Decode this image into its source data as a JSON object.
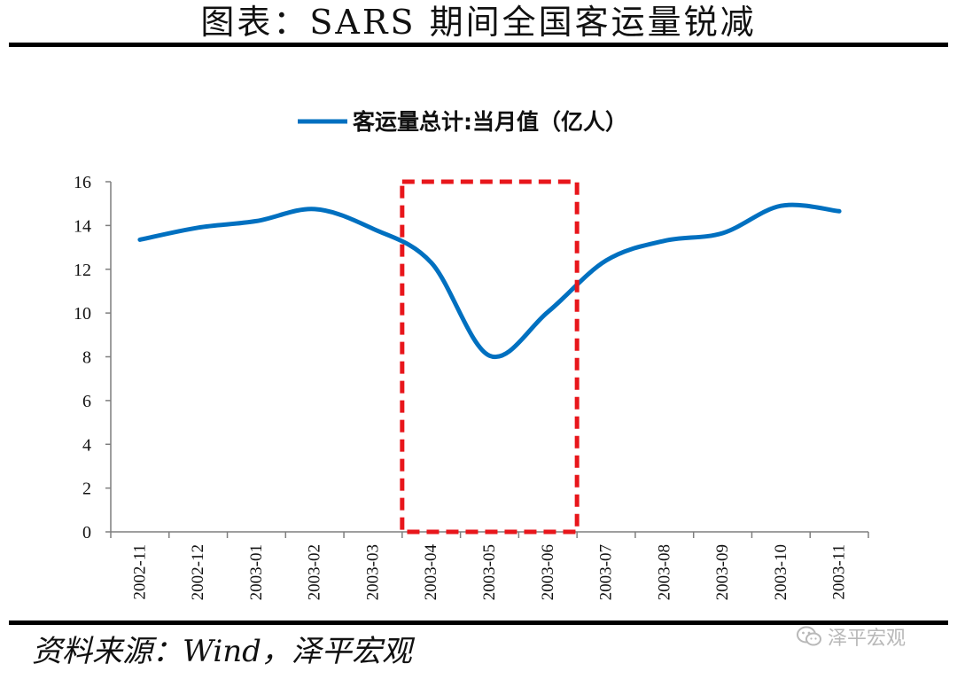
{
  "title": "图表：SARS 期间全国客运量锐减",
  "source": "资料来源：Wind，泽平宏观",
  "watermark": "泽平宏观",
  "colors": {
    "series": "#0070C0",
    "highlight_box": "#E8161B",
    "axis": "#7F7F7F",
    "text": "#111111",
    "watermark": "#B8B8B8"
  },
  "chart_data": {
    "type": "line",
    "title": "",
    "xlabel": "",
    "ylabel": "",
    "legend_position": "top",
    "grid": false,
    "categories": [
      "2002-11",
      "2002-12",
      "2003-01",
      "2003-02",
      "2003-03",
      "2003-04",
      "2003-05",
      "2003-06",
      "2003-07",
      "2003-08",
      "2003-09",
      "2003-10",
      "2003-11"
    ],
    "series": [
      {
        "name": "客运量总计:当月值（亿人）",
        "color": "#0070C0",
        "values": [
          13.35,
          13.9,
          14.2,
          14.75,
          13.85,
          12.3,
          8.05,
          10.05,
          12.4,
          13.3,
          13.65,
          14.9,
          14.65
        ]
      }
    ],
    "ylim": [
      0,
      16
    ],
    "yticks": [
      0,
      2,
      4,
      6,
      8,
      10,
      12,
      14,
      16
    ],
    "highlight": {
      "style": "dashed-box",
      "color": "#E8161B",
      "x_start": "2003-04",
      "x_end": "2003-06",
      "y_top": 16
    }
  }
}
